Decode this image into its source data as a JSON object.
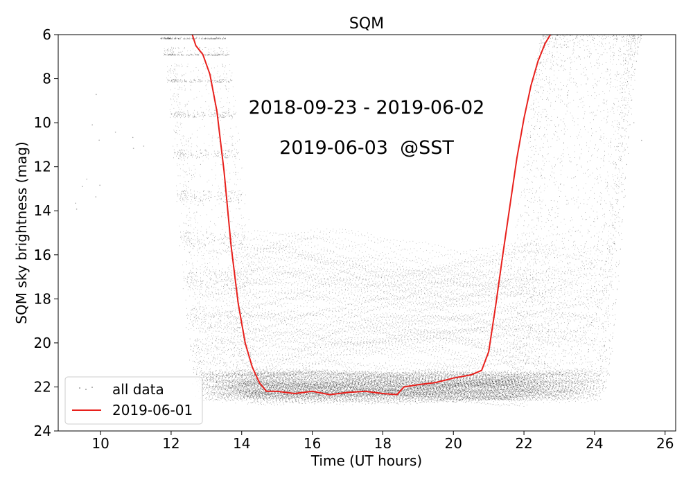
{
  "chart_data": {
    "type": "scatter",
    "title": "SQM",
    "xlabel": "Time (UT hours)",
    "ylabel": "SQM sky brightness (mag)",
    "xlim": [
      8.8,
      26.3
    ],
    "ylim": [
      24,
      6
    ],
    "y_inverted": true,
    "x_ticks": [
      10,
      12,
      14,
      16,
      18,
      20,
      22,
      24,
      26
    ],
    "y_ticks": [
      6,
      8,
      10,
      12,
      14,
      16,
      18,
      20,
      22,
      24
    ],
    "annotations": [
      "2018-09-23 - 2019-06-02",
      "2019-06-03  @SST"
    ],
    "legend_position": "lower-left",
    "colors": {
      "all_data": "#000000",
      "highlight": "#e8201c"
    },
    "series": [
      {
        "name": "all data",
        "style": "points",
        "description_range": "nightly curves: evening drop from 6 mag at ~11.6-13.2 h, night plateau 16-23.5 mag, morning rise back to 6 mag at ~22.8-25.4 h"
      },
      {
        "name": "2019-06-01",
        "style": "line",
        "x": [
          12.6,
          12.7,
          12.9,
          13.1,
          13.3,
          13.5,
          13.7,
          13.9,
          14.1,
          14.3,
          14.5,
          14.7,
          15.0,
          15.5,
          16.0,
          16.5,
          17.0,
          17.5,
          18.0,
          18.4,
          18.6,
          19.0,
          19.5,
          20.0,
          20.5,
          20.8,
          21.0,
          21.2,
          21.4,
          21.6,
          21.8,
          22.0,
          22.2,
          22.4,
          22.6,
          22.75
        ],
        "y": [
          6.0,
          6.5,
          6.9,
          7.8,
          9.5,
          12.2,
          15.6,
          18.2,
          20.0,
          21.1,
          21.8,
          22.2,
          22.2,
          22.3,
          22.2,
          22.35,
          22.25,
          22.2,
          22.3,
          22.35,
          22.0,
          21.9,
          21.8,
          21.6,
          21.45,
          21.25,
          20.4,
          18.3,
          16.0,
          13.8,
          11.6,
          9.8,
          8.3,
          7.2,
          6.4,
          6.0
        ]
      }
    ]
  }
}
